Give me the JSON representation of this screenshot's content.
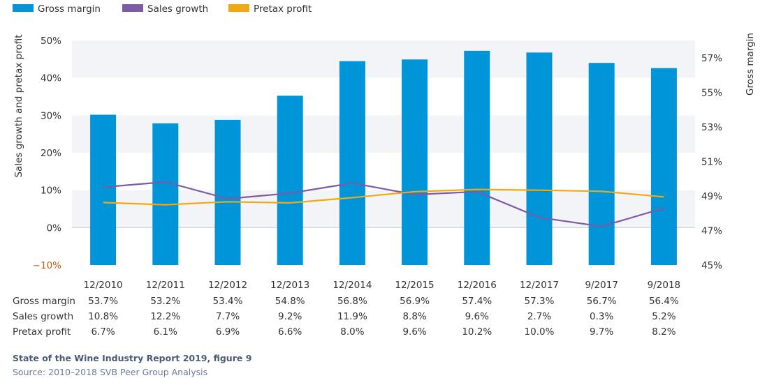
{
  "chart_data": {
    "type": "bar",
    "categories": [
      "12/2010",
      "12/2011",
      "12/2012",
      "12/2013",
      "12/2014",
      "12/2015",
      "12/2016",
      "12/2017",
      "9/2017",
      "9/2018"
    ],
    "series": [
      {
        "name": "Gross margin",
        "type": "bar",
        "axis": "right",
        "color": "#0095d9",
        "values": [
          53.7,
          53.2,
          53.4,
          54.8,
          56.8,
          56.9,
          57.4,
          57.3,
          56.7,
          56.4
        ],
        "labels": [
          "53.7%",
          "53.2%",
          "53.4%",
          "54.8%",
          "56.8%",
          "56.9%",
          "57.4%",
          "57.3%",
          "56.7%",
          "56.4%"
        ]
      },
      {
        "name": "Sales growth",
        "type": "line",
        "axis": "left",
        "color": "#7d5ba6",
        "values": [
          10.8,
          12.2,
          7.7,
          9.2,
          11.9,
          8.8,
          9.6,
          2.7,
          0.3,
          5.2
        ],
        "labels": [
          "10.8%",
          "12.2%",
          "7.7%",
          "9.2%",
          "11.9%",
          "8.8%",
          "9.6%",
          "2.7%",
          "0.3%",
          "5.2%"
        ]
      },
      {
        "name": "Pretax profit",
        "type": "line",
        "axis": "left",
        "color": "#f2a90f",
        "values": [
          6.7,
          6.1,
          6.9,
          6.6,
          8.0,
          9.6,
          10.2,
          10.0,
          9.7,
          8.2
        ],
        "labels": [
          "6.7%",
          "6.1%",
          "6.9%",
          "6.6%",
          "8.0%",
          "9.6%",
          "10.2%",
          "10.0%",
          "9.7%",
          "8.2%"
        ]
      }
    ],
    "ylabel": "Sales growth and pretax profit",
    "y2label": "Gross margin",
    "ylim": [
      -10,
      50
    ],
    "y2lim": [
      45,
      58
    ],
    "yticks": [
      "50%",
      "40%",
      "30%",
      "20%",
      "10%",
      "0%",
      "−10%"
    ],
    "yticks_values": [
      50,
      40,
      30,
      20,
      10,
      0,
      -10
    ],
    "y2ticks": [
      "57%",
      "55%",
      "53%",
      "51%",
      "49%",
      "47%",
      "45%"
    ],
    "y2ticks_values": [
      57,
      55,
      53,
      51,
      49,
      47,
      45
    ],
    "legend_position": "top-left",
    "grid": "alternating bands"
  },
  "footer": {
    "title": "State of the Wine Industry Report 2019, figure 9",
    "source": "Source: 2010–2018 SVB Peer Group Analysis"
  }
}
